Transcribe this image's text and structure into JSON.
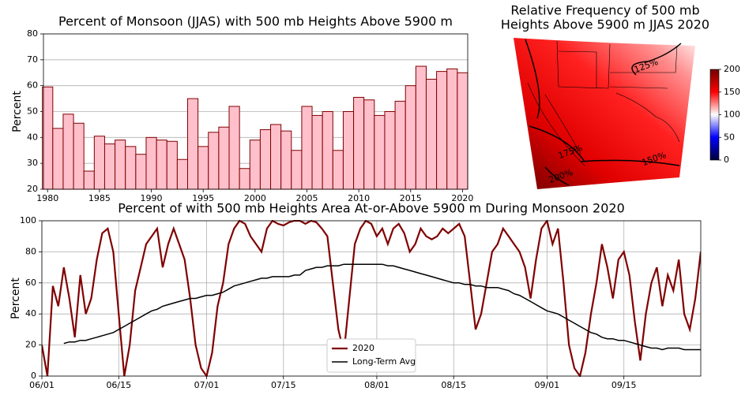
{
  "chart_data": [
    {
      "type": "bar",
      "title": "Percent of Monsoon (JJAS) with 500 mb Heights Above 5900 m",
      "y_label": "Percent",
      "categories": [
        1980,
        1981,
        1982,
        1983,
        1984,
        1985,
        1986,
        1987,
        1988,
        1989,
        1990,
        1991,
        1992,
        1993,
        1994,
        1995,
        1996,
        1997,
        1998,
        1999,
        2000,
        2001,
        2002,
        2003,
        2004,
        2005,
        2006,
        2007,
        2008,
        2009,
        2010,
        2011,
        2012,
        2013,
        2014,
        2015,
        2016,
        2017,
        2018,
        2019,
        2020
      ],
      "values": [
        59.5,
        43.5,
        49,
        45.5,
        27,
        40.5,
        37.5,
        39,
        36.5,
        33.5,
        40,
        39,
        38.5,
        31.5,
        55,
        36.5,
        42,
        44,
        52,
        28,
        39,
        43,
        45,
        42.5,
        35,
        52,
        48.5,
        50,
        35,
        50,
        55.5,
        54.5,
        48.5,
        50,
        54,
        60,
        67.5,
        62.5,
        65.5,
        66.5,
        65
      ],
      "color": "#ffc0cb",
      "edge_color": "#800000",
      "xlim": [
        1979.6,
        2020.5
      ],
      "xticks": [
        1980,
        1985,
        1990,
        1995,
        2000,
        2005,
        2010,
        2015,
        2020
      ],
      "ylim": [
        20,
        80
      ],
      "yticks": [
        20,
        30,
        40,
        50,
        60,
        70,
        80
      ],
      "grid": "y"
    },
    {
      "type": "map",
      "title": [
        "Relative Frequency of 500 mb",
        "Heights Above 5900 m JJAS 2020"
      ],
      "contour_labels": [
        "125%",
        "150%",
        "175%",
        "200%"
      ],
      "ylim": [
        0,
        200
      ],
      "yticks": [
        0,
        50,
        100,
        150,
        200
      ]
    },
    {
      "type": "line",
      "title": "Percent of with 500 mb Heights Area At-or-Above 5900 m During Monsoon 2020",
      "y_label": "Percent",
      "categories": [
        "06/01",
        "06/02",
        "06/03",
        "06/04",
        "06/05",
        "06/06",
        "06/07",
        "06/08",
        "06/09",
        "06/10",
        "06/11",
        "06/12",
        "06/13",
        "06/14",
        "06/15",
        "06/16",
        "06/17",
        "06/18",
        "06/19",
        "06/20",
        "06/21",
        "06/22",
        "06/23",
        "06/24",
        "06/25",
        "06/26",
        "06/27",
        "06/28",
        "06/29",
        "06/30",
        "07/01",
        "07/02",
        "07/03",
        "07/04",
        "07/05",
        "07/06",
        "07/07",
        "07/08",
        "07/09",
        "07/10",
        "07/11",
        "07/12",
        "07/13",
        "07/14",
        "07/15",
        "07/16",
        "07/17",
        "07/18",
        "07/19",
        "07/20",
        "07/21",
        "07/22",
        "07/23",
        "07/24",
        "07/25",
        "07/26",
        "07/27",
        "07/28",
        "07/29",
        "07/30",
        "07/31",
        "08/01",
        "08/02",
        "08/03",
        "08/04",
        "08/05",
        "08/06",
        "08/07",
        "08/08",
        "08/09",
        "08/10",
        "08/11",
        "08/12",
        "08/13",
        "08/14",
        "08/15",
        "08/16",
        "08/17",
        "08/18",
        "08/19",
        "08/20",
        "08/21",
        "08/22",
        "08/23",
        "08/24",
        "08/25",
        "08/26",
        "08/27",
        "08/28",
        "08/29",
        "08/30",
        "08/31",
        "09/01",
        "09/02",
        "09/03",
        "09/04",
        "09/05",
        "09/06",
        "09/07",
        "09/08",
        "09/09",
        "09/10",
        "09/11",
        "09/12",
        "09/13",
        "09/14",
        "09/15",
        "09/16",
        "09/17",
        "09/18",
        "09/19",
        "09/20",
        "09/21",
        "09/22",
        "09/23",
        "09/24",
        "09/25",
        "09/26",
        "09/27",
        "09/28",
        "09/29"
      ],
      "series": [
        {
          "name": "2020",
          "color": "#800000",
          "width": 2.2,
          "values": [
            20,
            0,
            58,
            45,
            70,
            50,
            25,
            65,
            40,
            50,
            75,
            92,
            95,
            80,
            40,
            0,
            20,
            55,
            70,
            85,
            90,
            95,
            70,
            85,
            95,
            85,
            75,
            50,
            20,
            5,
            0,
            15,
            45,
            60,
            85,
            95,
            100,
            98,
            90,
            85,
            80,
            95,
            100,
            98,
            97,
            99,
            100,
            100,
            98,
            100,
            99,
            95,
            90,
            60,
            30,
            15,
            50,
            85,
            95,
            100,
            98,
            90,
            95,
            85,
            95,
            98,
            92,
            80,
            85,
            95,
            90,
            88,
            90,
            95,
            92,
            95,
            98,
            90,
            60,
            30,
            40,
            60,
            80,
            85,
            95,
            90,
            85,
            80,
            70,
            50,
            75,
            95,
            100,
            85,
            95,
            60,
            20,
            5,
            0,
            15,
            40,
            60,
            85,
            70,
            50,
            75,
            80,
            65,
            35,
            10,
            40,
            60,
            70,
            45,
            65,
            55,
            75,
            40,
            30,
            50,
            80
          ]
        },
        {
          "name": "Long-Term Avg",
          "color": "#000000",
          "width": 1.5,
          "values": [
            null,
            null,
            null,
            null,
            21,
            22,
            22,
            23,
            23,
            24,
            25,
            26,
            27,
            28,
            30,
            32,
            34,
            36,
            38,
            40,
            42,
            43,
            45,
            46,
            47,
            48,
            49,
            50,
            50,
            51,
            52,
            52,
            53,
            54,
            56,
            58,
            59,
            60,
            61,
            62,
            63,
            63,
            64,
            64,
            64,
            64,
            65,
            65,
            68,
            69,
            70,
            70,
            71,
            71,
            71,
            72,
            72,
            72,
            72,
            72,
            72,
            72,
            72,
            71,
            71,
            70,
            69,
            68,
            67,
            66,
            65,
            64,
            63,
            62,
            61,
            60,
            60,
            59,
            59,
            58,
            58,
            57,
            57,
            57,
            56,
            55,
            53,
            52,
            50,
            48,
            46,
            44,
            42,
            41,
            40,
            38,
            36,
            34,
            32,
            30,
            28,
            27,
            25,
            24,
            24,
            23,
            23,
            22,
            21,
            20,
            19,
            18,
            18,
            17,
            18,
            18,
            18,
            17,
            17,
            17,
            17
          ]
        }
      ],
      "xlim": [
        0,
        120
      ],
      "xticks": [
        {
          "value": 0,
          "label": "06/01"
        },
        {
          "value": 14,
          "label": "06/15"
        },
        {
          "value": 30,
          "label": "07/01"
        },
        {
          "value": 44,
          "label": "07/15"
        },
        {
          "value": 61,
          "label": "08/01"
        },
        {
          "value": 75,
          "label": "08/15"
        },
        {
          "value": 92,
          "label": "09/01"
        },
        {
          "value": 106,
          "label": "09/15"
        }
      ],
      "ylim": [
        0,
        100
      ],
      "yticks": [
        0,
        20,
        40,
        60,
        80,
        100
      ],
      "grid": "both",
      "legend": "lower center"
    }
  ]
}
